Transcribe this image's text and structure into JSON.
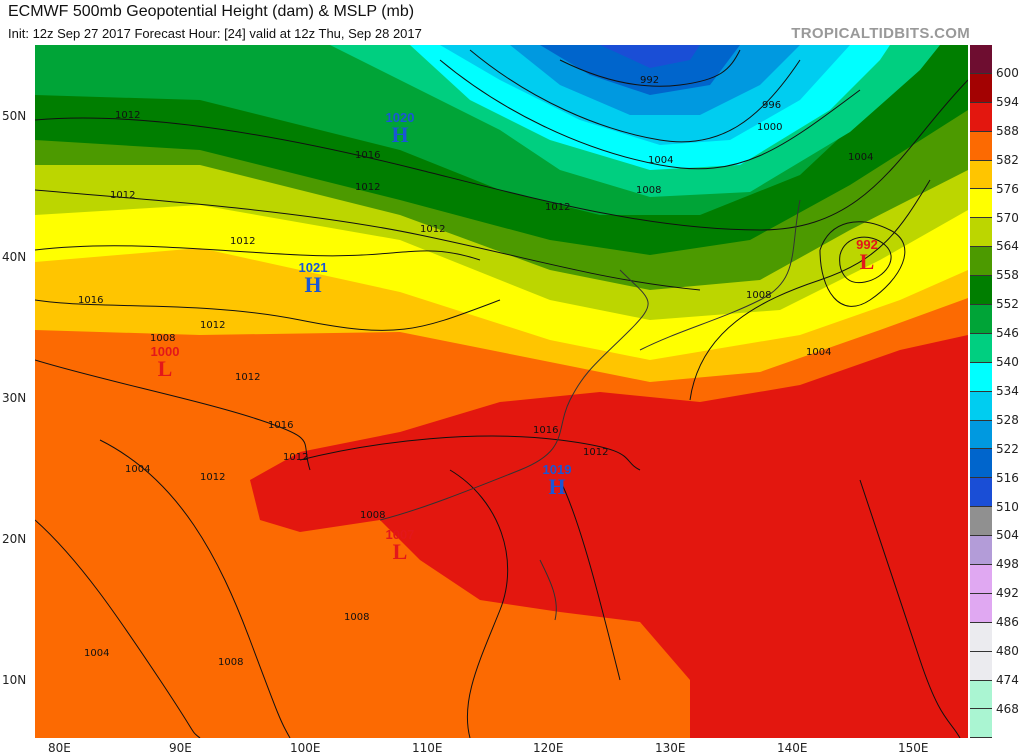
{
  "header": {
    "title": "ECMWF 500mb Geopotential Height (dam) & MSLP (mb)",
    "subtitle": "Init: 12z Sep 27 2017   Forecast Hour: [24]   valid at 12z Thu, Sep 28 2017",
    "brand": "TROPICALTIDBITS.COM"
  },
  "axes": {
    "lat_labels": [
      "50N",
      "40N",
      "30N",
      "20N",
      "10N"
    ],
    "lon_labels": [
      "80E",
      "90E",
      "100E",
      "110E",
      "120E",
      "130E",
      "140E",
      "150E"
    ]
  },
  "colorbar": {
    "labels": [
      "600",
      "594",
      "588",
      "582",
      "576",
      "570",
      "564",
      "558",
      "552",
      "546",
      "540",
      "534",
      "528",
      "522",
      "516",
      "510",
      "504",
      "498",
      "492",
      "486",
      "480",
      "474",
      "468"
    ],
    "colors": [
      "#6e0d30",
      "#a30202",
      "#e3170f",
      "#fc6a02",
      "#ffc500",
      "#ffff00",
      "#bcd600",
      "#4c9a00",
      "#007e00",
      "#00a437",
      "#00cf80",
      "#00ffff",
      "#00cdf0",
      "#0099e0",
      "#0065cc",
      "#1a4ed6",
      "#909090",
      "#b39cd8",
      "#e0a8f2",
      "#e0a8f2",
      "#ebebef",
      "#ebebef",
      "#aaf5d2",
      "#aaf5d2"
    ]
  },
  "pressure_centers": [
    {
      "type": "H",
      "value": "1020",
      "color": "#1a56d6"
    },
    {
      "type": "H",
      "value": "1021",
      "color": "#1a56d6"
    },
    {
      "type": "L",
      "value": "1000",
      "color": "#e3171a"
    },
    {
      "type": "H",
      "value": "1019",
      "color": "#1a56d6"
    },
    {
      "type": "L",
      "value": "1007",
      "color": "#e3171a"
    },
    {
      "type": "L",
      "value": "992",
      "color": "#e3171a"
    }
  ],
  "isobar_labels": [
    "1012",
    "1012",
    "1012",
    "1012",
    "1012",
    "1012",
    "1008",
    "1016",
    "1012",
    "1012",
    "1004",
    "1008",
    "1012",
    "1000",
    "996",
    "992",
    "1004",
    "1008",
    "1004",
    "1016",
    "1012",
    "1012",
    "1008",
    "1004",
    "1004",
    "1008",
    "1008",
    "1016",
    "1016"
  ]
}
